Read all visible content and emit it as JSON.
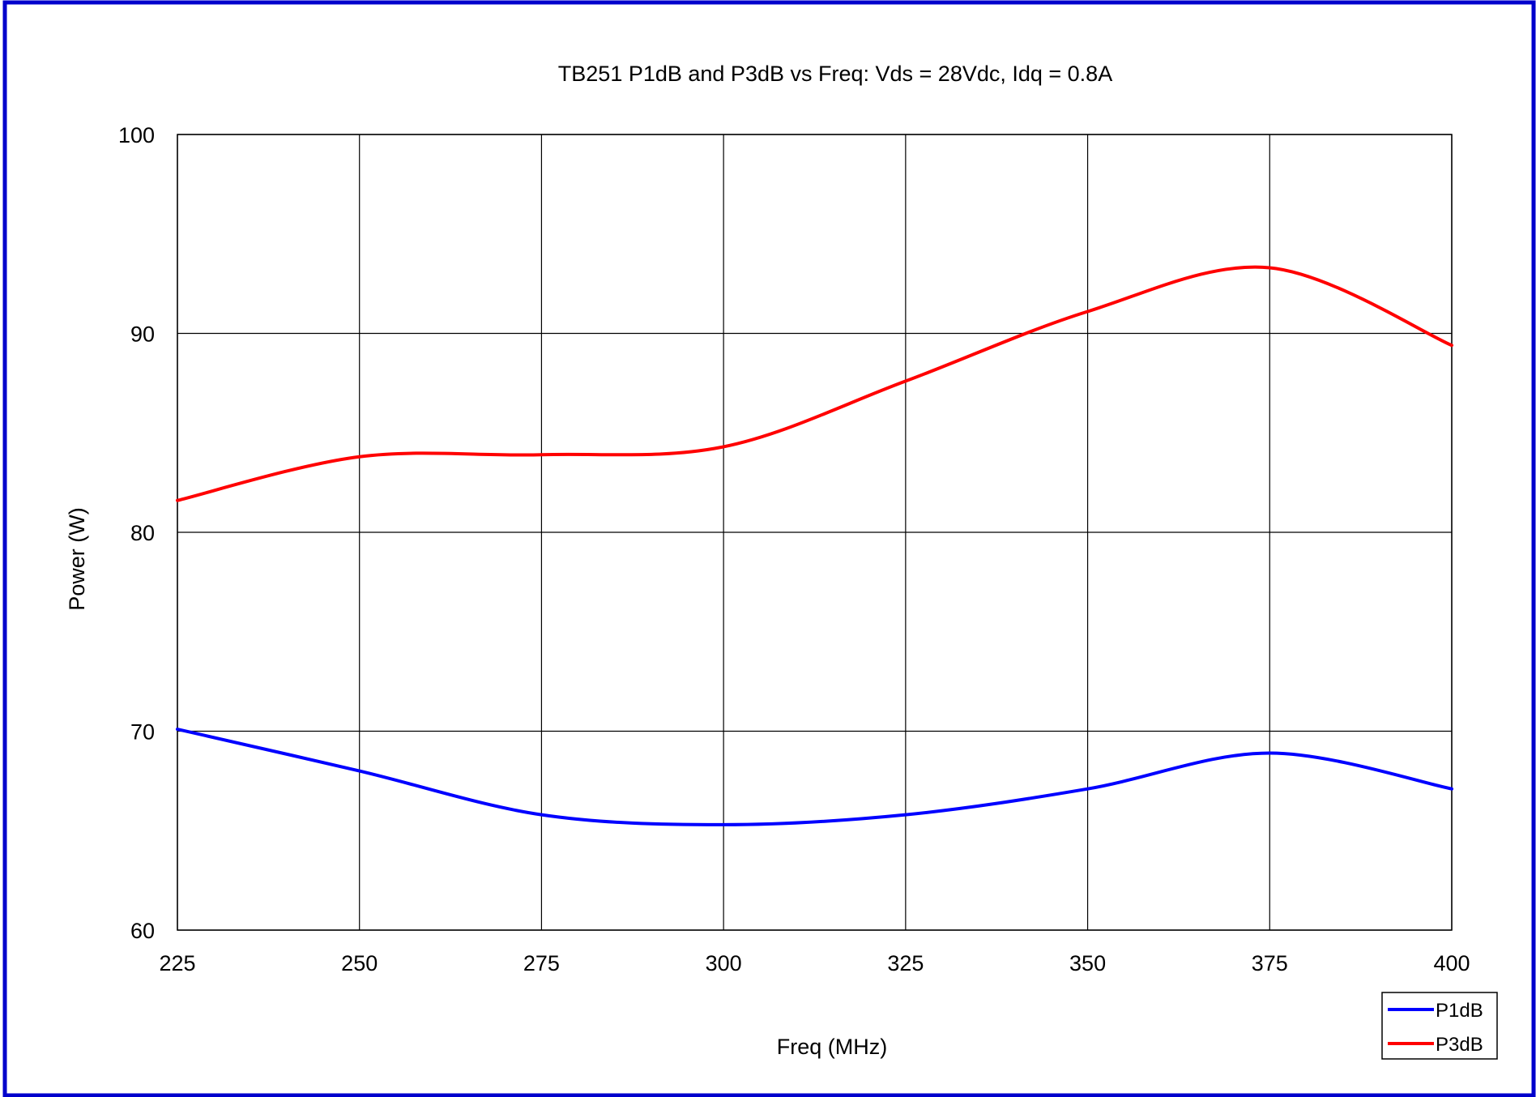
{
  "chart_data": {
    "type": "line",
    "title": "TB251 P1dB  and P3dB vs Freq: Vds = 28Vdc, Idq = 0.8A",
    "xlabel": "Freq (MHz)",
    "ylabel": "Power (W)",
    "xlim": [
      225,
      400
    ],
    "ylim": [
      60,
      100
    ],
    "x_ticks": [
      "225",
      "250",
      "275",
      "300",
      "325",
      "350",
      "375",
      "400"
    ],
    "y_ticks": [
      "60",
      "70",
      "80",
      "90",
      "100"
    ],
    "grid": true,
    "legend_position": "bottom-right",
    "x": [
      225,
      250,
      275,
      300,
      325,
      350,
      375,
      400
    ],
    "series": [
      {
        "name": "P1dB",
        "color": "#0000ff",
        "values": [
          70.1,
          68.0,
          65.8,
          65.3,
          65.8,
          67.1,
          68.9,
          67.1
        ]
      },
      {
        "name": "P3dB",
        "color": "#ff0000",
        "values": [
          81.6,
          83.8,
          83.9,
          84.3,
          87.6,
          91.1,
          93.3,
          89.4
        ]
      }
    ]
  },
  "colors": {
    "frame_border": "#0000cc",
    "grid": "#000000",
    "background": "#ffffff"
  }
}
